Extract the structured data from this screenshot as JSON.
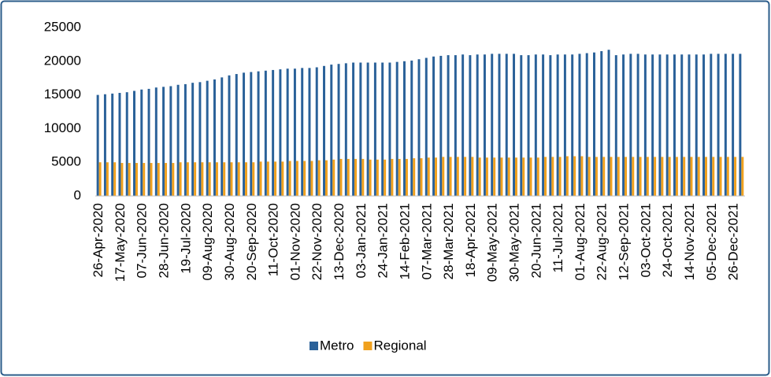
{
  "chart_data": {
    "type": "bar",
    "categories": [
      "26-Apr-2020",
      null,
      null,
      "17-May-2020",
      null,
      null,
      "07-Jun-2020",
      null,
      null,
      "28-Jun-2020",
      null,
      null,
      "19-Jul-2020",
      null,
      null,
      "09-Aug-2020",
      null,
      null,
      "30-Aug-2020",
      null,
      null,
      "20-Sep-2020",
      null,
      null,
      "11-Oct-2020",
      null,
      null,
      "01-Nov-2020",
      null,
      null,
      "22-Nov-2020",
      null,
      null,
      "13-Dec-2020",
      null,
      null,
      "03-Jan-2021",
      null,
      null,
      "24-Jan-2021",
      null,
      null,
      "14-Feb-2021",
      null,
      null,
      "07-Mar-2021",
      null,
      null,
      "28-Mar-2021",
      null,
      null,
      "18-Apr-2021",
      null,
      null,
      "09-May-2021",
      null,
      null,
      "30-May-2021",
      null,
      null,
      "20-Jun-2021",
      null,
      null,
      "11-Jul-2021",
      null,
      null,
      "01-Aug-2021",
      null,
      null,
      "22-Aug-2021",
      null,
      null,
      "12-Sep-2021",
      null,
      null,
      "03-Oct-2021",
      null,
      null,
      "24-Oct-2021",
      null,
      null,
      "14-Nov-2021",
      null,
      null,
      "05-Dec-2021",
      null,
      null,
      "26-Dec-2021",
      null
    ],
    "series": [
      {
        "name": "Metro",
        "color": "#2a6199",
        "values": [
          15000,
          15100,
          15200,
          15300,
          15400,
          15600,
          15800,
          15900,
          16100,
          16200,
          16300,
          16500,
          16600,
          16800,
          16900,
          17100,
          17300,
          17600,
          17900,
          18100,
          18300,
          18400,
          18500,
          18600,
          18700,
          18800,
          18900,
          18900,
          19000,
          19000,
          19100,
          19300,
          19500,
          19600,
          19700,
          19800,
          19800,
          19800,
          19800,
          19800,
          19800,
          19900,
          20000,
          20100,
          20300,
          20500,
          20700,
          20800,
          20900,
          20900,
          21000,
          20900,
          21000,
          21000,
          21100,
          21100,
          21100,
          21100,
          20900,
          20900,
          21000,
          21000,
          20900,
          21000,
          21000,
          21000,
          21100,
          21200,
          21300,
          21500,
          21700,
          20900,
          21000,
          21100,
          21100,
          21000,
          21000,
          21000,
          21000,
          21000,
          21000,
          21000,
          21000,
          21000,
          21100,
          21100,
          21100,
          21100,
          21100
        ]
      },
      {
        "name": "Regional",
        "color": "#f0a11e",
        "values": [
          5000,
          5000,
          5000,
          4900,
          4900,
          4900,
          4900,
          4900,
          4900,
          4900,
          4900,
          5000,
          5000,
          5000,
          5000,
          5000,
          5000,
          5000,
          5000,
          5000,
          5000,
          5000,
          5100,
          5100,
          5100,
          5100,
          5200,
          5200,
          5200,
          5200,
          5300,
          5300,
          5400,
          5500,
          5500,
          5500,
          5500,
          5400,
          5400,
          5400,
          5500,
          5500,
          5500,
          5600,
          5600,
          5700,
          5700,
          5800,
          5800,
          5800,
          5800,
          5800,
          5700,
          5700,
          5700,
          5700,
          5700,
          5700,
          5700,
          5700,
          5700,
          5800,
          5800,
          5800,
          5900,
          5900,
          5900,
          5800,
          5800,
          5800,
          5800,
          5800,
          5800,
          5800,
          5800,
          5800,
          5800,
          5800,
          5800,
          5800,
          5800,
          5800,
          5800,
          5800,
          5800,
          5800,
          5800,
          5800,
          5800
        ]
      }
    ],
    "ylim": [
      0,
      25000
    ],
    "yticks": [
      0,
      5000,
      10000,
      15000,
      20000,
      25000
    ],
    "grid": false
  }
}
